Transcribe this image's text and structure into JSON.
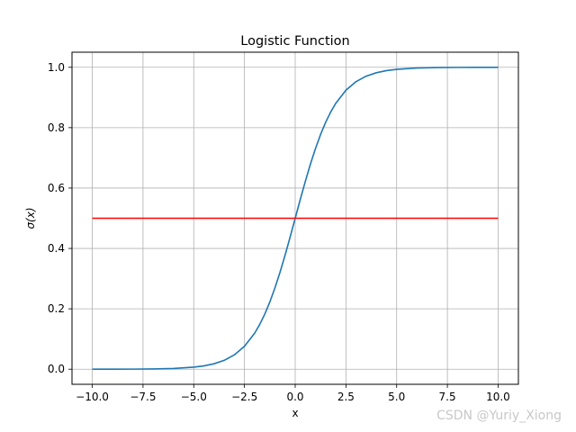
{
  "chart_data": {
    "type": "line",
    "title": "Logistic Function",
    "xlabel": "x",
    "ylabel": "σ(x)",
    "xlim": [
      -11.0,
      11.0
    ],
    "ylim": [
      -0.05,
      1.05
    ],
    "x_ticks": [
      -10.0,
      -7.5,
      -5.0,
      -2.5,
      0.0,
      2.5,
      5.0,
      7.5,
      10.0
    ],
    "x_tick_labels": [
      "−10.0",
      "−7.5",
      "−5.0",
      "−2.5",
      "0.0",
      "2.5",
      "5.0",
      "7.5",
      "10.0"
    ],
    "y_ticks": [
      0.0,
      0.2,
      0.4,
      0.6,
      0.8,
      1.0
    ],
    "y_tick_labels": [
      "0.0",
      "0.2",
      "0.4",
      "0.6",
      "0.8",
      "1.0"
    ],
    "grid": true,
    "series": [
      {
        "color": "#1f77b4",
        "x": [
          -10,
          -9,
          -8,
          -7,
          -6,
          -5,
          -4.5,
          -4,
          -3.5,
          -3,
          -2.5,
          -2,
          -1.75,
          -1.5,
          -1.25,
          -1,
          -0.75,
          -0.5,
          -0.25,
          0,
          0.25,
          0.5,
          0.75,
          1,
          1.25,
          1.5,
          1.75,
          2,
          2.5,
          3,
          3.5,
          4,
          4.5,
          5,
          6,
          7,
          8,
          9,
          10
        ],
        "y": [
          0.0,
          0.0001,
          0.0003,
          0.0009,
          0.0025,
          0.0067,
          0.011,
          0.018,
          0.0293,
          0.0474,
          0.0759,
          0.1192,
          0.148,
          0.1824,
          0.2227,
          0.2689,
          0.3208,
          0.3775,
          0.4378,
          0.5,
          0.5622,
          0.6225,
          0.6792,
          0.7311,
          0.7773,
          0.8176,
          0.852,
          0.8808,
          0.9241,
          0.9526,
          0.9707,
          0.982,
          0.989,
          0.9933,
          0.9975,
          0.9991,
          0.9997,
          0.9999,
          1.0
        ]
      },
      {
        "color": "#ff0000",
        "x": [
          -10,
          10
        ],
        "y": [
          0.5,
          0.5
        ]
      }
    ]
  },
  "watermark": "CSDN @Yuriy_Xiong"
}
